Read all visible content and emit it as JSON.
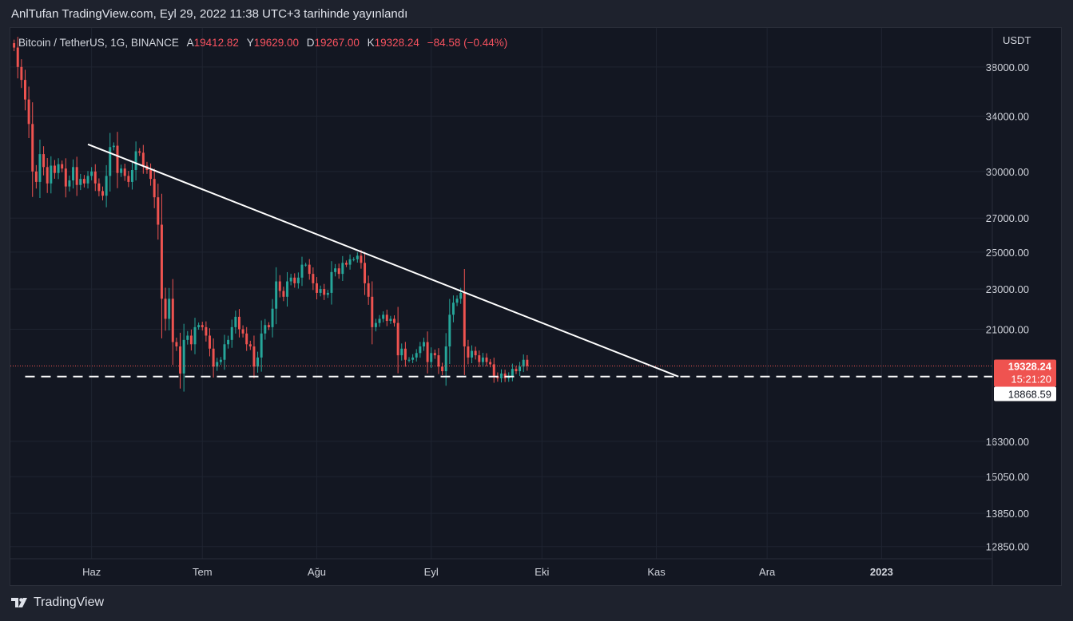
{
  "header": {
    "title": "AnlTufan TradingView.com, Eyl 29, 2022 11:38 UTC+3 tarihinde yayınlandı"
  },
  "legend": {
    "symbol": "Bitcoin / TetherUS, 1G, BINANCE",
    "open_label": "A",
    "open": "19412.82",
    "high_label": "Y",
    "high": "19629.00",
    "low_label": "D",
    "low": "19267.00",
    "close_label": "K",
    "close": "19328.24",
    "change": "−84.58 (−0.44%)"
  },
  "axis": {
    "currency": "USDT",
    "y_ticks": [
      "38000.00",
      "34000.00",
      "30000.00",
      "27000.00",
      "25000.00",
      "23000.00",
      "21000.00",
      "16300.00",
      "15050.00",
      "13850.00",
      "12850.00"
    ],
    "x_ticks": [
      "Haz",
      "Tem",
      "Ağu",
      "Eyl",
      "Eki",
      "Kas",
      "Ara",
      "2023"
    ]
  },
  "price_labels": {
    "last_price": "19328.24",
    "countdown": "15:21:20",
    "support_level": "18868.59"
  },
  "footer": {
    "brand": "TradingView"
  },
  "colors": {
    "up": "#26a69a",
    "down": "#ef5350",
    "background": "#131722",
    "trendline": "#ffffff"
  },
  "chart_data": {
    "type": "candlestick",
    "x_range": [
      "2022-05-10",
      "2023-01-31"
    ],
    "ylim": [
      12500,
      41500
    ],
    "scale": "log",
    "grid": true,
    "closes": [
      39700,
      38000,
      36900,
      35300,
      33400,
      30000,
      29300,
      31200,
      30300,
      29200,
      30400,
      29900,
      30500,
      30200,
      29000,
      29400,
      30300,
      29100,
      29500,
      29200,
      29700,
      30000,
      29200,
      28700,
      28400,
      29700,
      31700,
      31800,
      29900,
      30200,
      29700,
      29300,
      30100,
      31400,
      31300,
      30400,
      30100,
      29500,
      28300,
      26600,
      22500,
      21500,
      22500,
      20400,
      20200,
      19000,
      20500,
      20700,
      20300,
      21100,
      21200,
      21100,
      20700,
      20100,
      19300,
      19500,
      19600,
      20300,
      20500,
      21100,
      21600,
      21000,
      20800,
      20300,
      20200,
      19300,
      19700,
      20800,
      21200,
      21100,
      22000,
      23400,
      22900,
      22600,
      23400,
      23600,
      23300,
      23600,
      24300,
      24300,
      23800,
      23300,
      22800,
      23000,
      22700,
      22800,
      23900,
      24100,
      23800,
      24400,
      24300,
      24600,
      24600,
      24800,
      24400,
      23300,
      22600,
      21100,
      21300,
      21500,
      21700,
      21400,
      21500,
      21300,
      19800,
      20100,
      19600,
      19600,
      19700,
      19900,
      20200,
      20400,
      19500,
      19900,
      19800,
      19300,
      19100,
      20200,
      21700,
      22300,
      22500,
      22800,
      20200,
      19700,
      20000,
      19800,
      19500,
      19700,
      19500,
      19400,
      18900,
      18800,
      19000,
      18800,
      18900,
      19200,
      19100,
      19300,
      19600,
      19328
    ],
    "trendlines": [
      {
        "name": "descending resistance",
        "from": {
          "x": "2022-05-31",
          "y": 31900
        },
        "to": {
          "x": "2022-11-07",
          "y": 18868.59
        }
      },
      {
        "name": "support",
        "style": "dashed",
        "y": 18868.59
      }
    ]
  }
}
